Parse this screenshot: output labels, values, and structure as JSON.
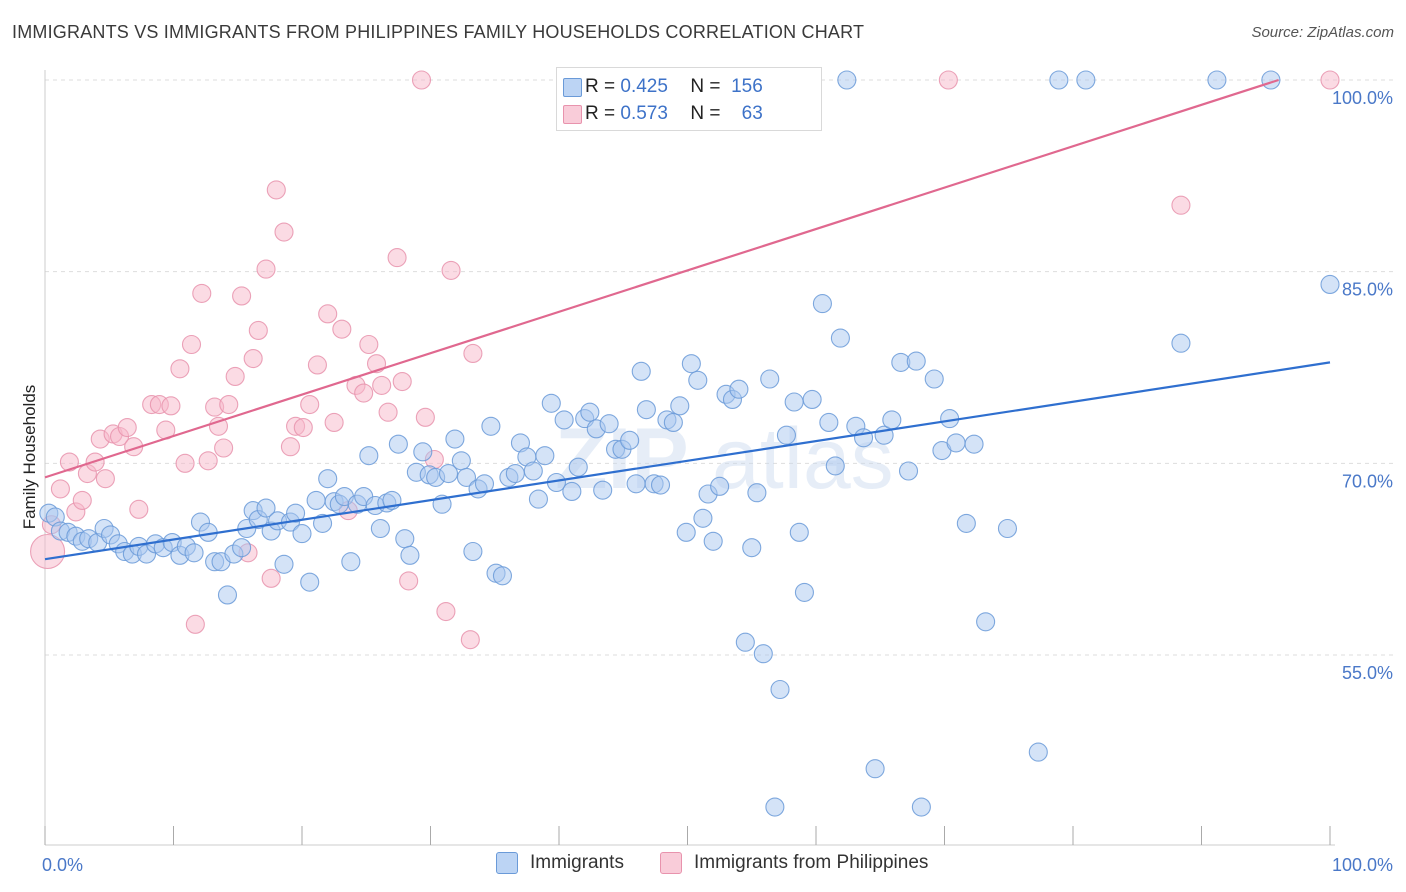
{
  "header": {
    "title": "IMMIGRANTS VS IMMIGRANTS FROM PHILIPPINES FAMILY HOUSEHOLDS CORRELATION CHART",
    "source": "Source: ZipAtlas.com"
  },
  "watermark": {
    "part1": "ZIP",
    "part2": "atlas"
  },
  "legend_top": {
    "rows": [
      {
        "r_label": "R =",
        "r_value": "0.425",
        "n_label": "N =",
        "n_value": "156"
      },
      {
        "r_label": "R =",
        "r_value": "0.573",
        "n_label": "N =",
        "n_value": "63"
      }
    ]
  },
  "legend_bottom": {
    "items": [
      {
        "label": "Immigrants"
      },
      {
        "label": "Immigrants from Philippines"
      }
    ]
  },
  "colors": {
    "blue_fill": "#a9c8f0",
    "blue_stroke": "#6a9ad8",
    "blue_line": "#2f6fcf",
    "pink_fill": "#f7b8ca",
    "pink_stroke": "#e893ad",
    "pink_line": "#e0688f",
    "grid": "#dddddd",
    "axis_text": "#4a78c8"
  },
  "chart_data": {
    "type": "scatter",
    "title": "IMMIGRANTS VS IMMIGRANTS FROM PHILIPPINES FAMILY HOUSEHOLDS CORRELATION CHART",
    "xlabel": "",
    "ylabel": "Family Households",
    "xlim": [
      0,
      100
    ],
    "ylim": [
      40,
      102
    ],
    "x_tick_labels": [
      "0.0%",
      "100.0%"
    ],
    "y_tick_labels": [
      "55.0%",
      "70.0%",
      "85.0%",
      "100.0%"
    ],
    "y_ticks": [
      55,
      70,
      85,
      100
    ],
    "grid": true,
    "legend_position": "top-center",
    "series": [
      {
        "name": "Immigrants",
        "color": "#a9c8f0",
        "trend": {
          "x": [
            0,
            100
          ],
          "y": [
            62.5,
            77.9
          ]
        },
        "points": [
          [
            0.3,
            66.1
          ],
          [
            0.8,
            65.8
          ],
          [
            1.2,
            64.7
          ],
          [
            1.8,
            64.6
          ],
          [
            2.4,
            64.3
          ],
          [
            2.9,
            63.9
          ],
          [
            3.4,
            64.1
          ],
          [
            4.1,
            63.8
          ],
          [
            4.6,
            64.9
          ],
          [
            5.1,
            64.4
          ],
          [
            5.7,
            63.7
          ],
          [
            6.2,
            63.1
          ],
          [
            6.8,
            62.9
          ],
          [
            7.3,
            63.5
          ],
          [
            7.9,
            62.9
          ],
          [
            8.6,
            63.7
          ],
          [
            9.2,
            63.4
          ],
          [
            9.9,
            63.8
          ],
          [
            10.5,
            62.8
          ],
          [
            11.0,
            63.5
          ],
          [
            11.6,
            63.0
          ],
          [
            12.1,
            65.4
          ],
          [
            12.7,
            64.6
          ],
          [
            13.2,
            62.3
          ],
          [
            13.7,
            62.3
          ],
          [
            14.2,
            59.7
          ],
          [
            14.7,
            62.9
          ],
          [
            15.3,
            63.4
          ],
          [
            15.7,
            64.9
          ],
          [
            16.2,
            66.3
          ],
          [
            16.6,
            65.6
          ],
          [
            17.2,
            66.5
          ],
          [
            17.6,
            64.7
          ],
          [
            18.1,
            65.5
          ],
          [
            18.6,
            62.1
          ],
          [
            19.1,
            65.4
          ],
          [
            19.5,
            66.1
          ],
          [
            20.0,
            64.5
          ],
          [
            20.6,
            60.7
          ],
          [
            21.1,
            67.1
          ],
          [
            21.6,
            65.3
          ],
          [
            22.0,
            68.8
          ],
          [
            22.5,
            67.0
          ],
          [
            22.9,
            66.8
          ],
          [
            23.3,
            67.4
          ],
          [
            23.8,
            62.3
          ],
          [
            24.3,
            66.8
          ],
          [
            24.8,
            67.4
          ],
          [
            25.2,
            70.6
          ],
          [
            25.7,
            66.7
          ],
          [
            26.1,
            64.9
          ],
          [
            26.6,
            66.9
          ],
          [
            27.0,
            67.1
          ],
          [
            27.5,
            71.5
          ],
          [
            28.0,
            64.1
          ],
          [
            28.4,
            62.8
          ],
          [
            28.9,
            69.3
          ],
          [
            29.4,
            70.9
          ],
          [
            29.9,
            69.1
          ],
          [
            30.4,
            68.9
          ],
          [
            30.9,
            66.8
          ],
          [
            31.4,
            69.2
          ],
          [
            31.9,
            71.9
          ],
          [
            32.4,
            70.2
          ],
          [
            32.8,
            68.9
          ],
          [
            33.3,
            63.1
          ],
          [
            33.7,
            68.0
          ],
          [
            34.2,
            68.4
          ],
          [
            34.7,
            72.9
          ],
          [
            35.1,
            61.4
          ],
          [
            35.6,
            61.2
          ],
          [
            36.1,
            68.9
          ],
          [
            36.6,
            69.2
          ],
          [
            37.0,
            71.6
          ],
          [
            37.5,
            70.5
          ],
          [
            38.0,
            69.4
          ],
          [
            38.4,
            67.2
          ],
          [
            38.9,
            70.6
          ],
          [
            39.4,
            74.7
          ],
          [
            39.8,
            68.5
          ],
          [
            40.4,
            73.4
          ],
          [
            41.0,
            67.8
          ],
          [
            41.5,
            69.7
          ],
          [
            42.0,
            73.5
          ],
          [
            42.4,
            74.0
          ],
          [
            42.9,
            72.7
          ],
          [
            43.4,
            67.9
          ],
          [
            43.9,
            73.1
          ],
          [
            44.4,
            71.1
          ],
          [
            44.9,
            71.1
          ],
          [
            45.5,
            71.8
          ],
          [
            46.0,
            68.4
          ],
          [
            46.4,
            77.2
          ],
          [
            46.8,
            74.2
          ],
          [
            47.4,
            68.4
          ],
          [
            47.9,
            68.3
          ],
          [
            48.4,
            73.4
          ],
          [
            48.9,
            73.2
          ],
          [
            49.4,
            74.5
          ],
          [
            49.9,
            64.6
          ],
          [
            50.3,
            77.8
          ],
          [
            50.8,
            76.5
          ],
          [
            51.2,
            65.7
          ],
          [
            51.6,
            67.6
          ],
          [
            52.0,
            63.9
          ],
          [
            52.5,
            68.2
          ],
          [
            53.0,
            75.4
          ],
          [
            53.5,
            75.0
          ],
          [
            54.0,
            75.8
          ],
          [
            54.5,
            56.0
          ],
          [
            55.0,
            63.4
          ],
          [
            55.4,
            67.7
          ],
          [
            55.9,
            55.1
          ],
          [
            56.4,
            76.6
          ],
          [
            56.8,
            43.1
          ],
          [
            57.2,
            52.3
          ],
          [
            57.7,
            72.2
          ],
          [
            58.3,
            74.8
          ],
          [
            58.7,
            64.6
          ],
          [
            59.1,
            59.9
          ],
          [
            59.7,
            75.0
          ],
          [
            60.5,
            82.5
          ],
          [
            61.0,
            73.2
          ],
          [
            61.5,
            69.8
          ],
          [
            61.9,
            79.8
          ],
          [
            62.4,
            100.0
          ],
          [
            63.1,
            72.9
          ],
          [
            63.7,
            72.0
          ],
          [
            64.6,
            46.1
          ],
          [
            65.3,
            72.2
          ],
          [
            65.9,
            73.4
          ],
          [
            66.6,
            77.9
          ],
          [
            67.2,
            69.4
          ],
          [
            68.2,
            43.1
          ],
          [
            67.8,
            78.0
          ],
          [
            69.2,
            76.6
          ],
          [
            69.8,
            71.0
          ],
          [
            70.4,
            73.5
          ],
          [
            70.9,
            71.6
          ],
          [
            71.7,
            65.3
          ],
          [
            72.3,
            71.5
          ],
          [
            73.2,
            57.6
          ],
          [
            74.9,
            64.9
          ],
          [
            77.3,
            47.4
          ],
          [
            78.9,
            100.0
          ],
          [
            81.0,
            100.0
          ],
          [
            91.2,
            100.0
          ],
          [
            95.4,
            100.0
          ],
          [
            88.4,
            79.4
          ],
          [
            100.0,
            84.0
          ]
        ]
      },
      {
        "name": "Immigrants from Philippines",
        "color": "#f7b8ca",
        "trend": {
          "x": [
            0,
            96
          ],
          "y": [
            68.9,
            100.0
          ]
        },
        "points": [
          [
            0.2,
            63.1
          ],
          [
            0.5,
            65.2
          ],
          [
            1.2,
            68.0
          ],
          [
            1.9,
            70.1
          ],
          [
            2.4,
            66.2
          ],
          [
            2.9,
            67.1
          ],
          [
            3.3,
            69.2
          ],
          [
            3.9,
            70.1
          ],
          [
            4.3,
            71.9
          ],
          [
            4.7,
            68.8
          ],
          [
            5.3,
            72.3
          ],
          [
            5.8,
            72.1
          ],
          [
            6.4,
            72.8
          ],
          [
            6.9,
            71.3
          ],
          [
            7.3,
            66.4
          ],
          [
            8.3,
            74.6
          ],
          [
            8.9,
            74.6
          ],
          [
            9.4,
            72.6
          ],
          [
            9.8,
            74.5
          ],
          [
            10.5,
            77.4
          ],
          [
            10.9,
            70.0
          ],
          [
            11.4,
            79.3
          ],
          [
            11.7,
            57.4
          ],
          [
            12.2,
            83.3
          ],
          [
            12.7,
            70.2
          ],
          [
            13.2,
            74.4
          ],
          [
            13.5,
            72.9
          ],
          [
            13.9,
            71.2
          ],
          [
            14.3,
            74.6
          ],
          [
            14.8,
            76.8
          ],
          [
            15.3,
            83.1
          ],
          [
            15.8,
            63.0
          ],
          [
            16.2,
            78.2
          ],
          [
            16.6,
            80.4
          ],
          [
            17.2,
            85.2
          ],
          [
            17.6,
            61.0
          ],
          [
            18.0,
            91.4
          ],
          [
            18.6,
            88.1
          ],
          [
            19.1,
            71.3
          ],
          [
            19.5,
            72.9
          ],
          [
            20.1,
            72.8
          ],
          [
            20.6,
            74.6
          ],
          [
            21.2,
            77.7
          ],
          [
            22.0,
            81.7
          ],
          [
            22.5,
            73.2
          ],
          [
            23.1,
            80.5
          ],
          [
            23.6,
            66.3
          ],
          [
            24.2,
            76.1
          ],
          [
            24.8,
            75.5
          ],
          [
            25.2,
            79.3
          ],
          [
            25.8,
            77.8
          ],
          [
            26.2,
            76.1
          ],
          [
            26.7,
            74.0
          ],
          [
            27.4,
            86.1
          ],
          [
            27.8,
            76.4
          ],
          [
            28.3,
            60.8
          ],
          [
            29.3,
            100.0
          ],
          [
            29.6,
            73.6
          ],
          [
            30.3,
            70.3
          ],
          [
            31.2,
            58.4
          ],
          [
            31.6,
            85.1
          ],
          [
            33.1,
            56.2
          ],
          [
            33.3,
            78.6
          ],
          [
            70.3,
            100.0
          ],
          [
            88.4,
            90.2
          ],
          [
            100.0,
            100.0
          ]
        ]
      }
    ]
  }
}
